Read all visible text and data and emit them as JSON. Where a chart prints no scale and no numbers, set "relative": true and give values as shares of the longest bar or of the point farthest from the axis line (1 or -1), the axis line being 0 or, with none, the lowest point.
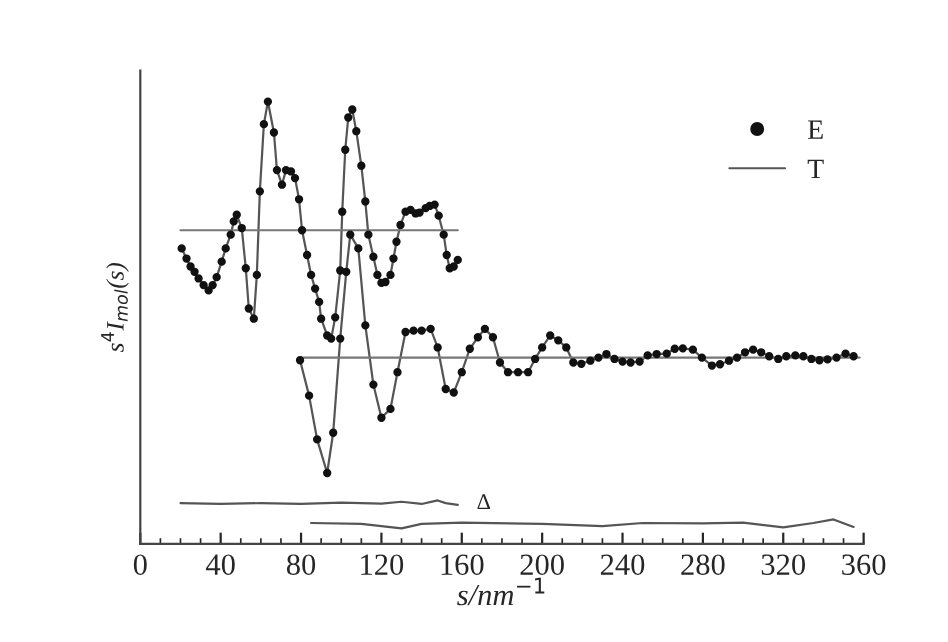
{
  "chart_data": {
    "type": "line",
    "relative": true,
    "xlabel": "s/nm$^{−1}$",
    "ylabel": "s$^{4}$I$_{mol}$(s)",
    "xlim": [
      0,
      360
    ],
    "xticks": [
      0,
      40,
      80,
      120,
      160,
      200,
      240,
      280,
      320,
      360
    ],
    "grid": false,
    "legend": "top right",
    "annotations": [
      "Δ"
    ],
    "series": [
      {
        "name": "E",
        "type": "scatter",
        "marker": "circle",
        "color": "#111111",
        "x": [
          20.6,
          23,
          25,
          27,
          29,
          31.5,
          34,
          36,
          38,
          40.5,
          42.5,
          45,
          46.5,
          48,
          50.5,
          52.5,
          54,
          56.5,
          58,
          59.5,
          61.5,
          63.5,
          66.5,
          68,
          70.5,
          72.5,
          75,
          77,
          79,
          80.5,
          83,
          85,
          87,
          89,
          90,
          93,
          95,
          97,
          99.5,
          100.5,
          102,
          103.5,
          105.5,
          107.5,
          110,
          112,
          113.5,
          116,
          118,
          120,
          122,
          124.5,
          126,
          127.5,
          129.5,
          132,
          134.5,
          137,
          139,
          142,
          144,
          146.5,
          148.5,
          151,
          152.5,
          154,
          156,
          158
        ],
        "values": [
          0.668,
          0.645,
          0.627,
          0.615,
          0.6,
          0.585,
          0.573,
          0.585,
          0.603,
          0.638,
          0.668,
          0.699,
          0.729,
          0.744,
          0.714,
          0.623,
          0.532,
          0.509,
          0.608,
          0.797,
          0.949,
          1,
          0.93,
          0.845,
          0.812,
          0.845,
          0.842,
          0.827,
          0.779,
          0.709,
          0.653,
          0.608,
          0.577,
          0.547,
          0.509,
          0.471,
          0.464,
          0.512,
          0.618,
          0.751,
          0.891,
          0.964,
          0.982,
          0.933,
          0.855,
          0.774,
          0.699,
          0.649,
          0.608,
          0.59,
          0.592,
          0.608,
          0.645,
          0.683,
          0.721,
          0.751,
          0.755,
          0.747,
          0.749,
          0.759,
          0.764,
          0.767,
          0.742,
          0.699,
          0.653,
          0.623,
          0.627,
          0.642
        ]
      },
      {
        "type": "scatter",
        "marker": "circle",
        "color": "#111111",
        "x": [
          79.5,
          84,
          88,
          93,
          96,
          99.5,
          102.5,
          104.5,
          108.5,
          112,
          116,
          120,
          124.5,
          128,
          132,
          136,
          140,
          144.5,
          148,
          152,
          156,
          160,
          164,
          168,
          171.5,
          175.5,
          179,
          183,
          188,
          193,
          196.5,
          200,
          204,
          208,
          212,
          215.5,
          219.5,
          224,
          228,
          232,
          236,
          240,
          244,
          248.5,
          252.5,
          257,
          262,
          266,
          270,
          275,
          279.5,
          284.5,
          288.5,
          293,
          297,
          301,
          305,
          309,
          313,
          317.5,
          321.5,
          326,
          330,
          334,
          338,
          342,
          346.5,
          351,
          355
        ],
        "values": [
          0.415,
          0.335,
          0.236,
          0.16,
          0.251,
          0.464,
          0.615,
          0.699,
          0.668,
          0.494,
          0.36,
          0.285,
          0.305,
          0.388,
          0.479,
          0.482,
          0.482,
          0.486,
          0.444,
          0.35,
          0.342,
          0.388,
          0.441,
          0.467,
          0.486,
          0.467,
          0.41,
          0.388,
          0.388,
          0.388,
          0.418,
          0.444,
          0.471,
          0.46,
          0.444,
          0.41,
          0.407,
          0.414,
          0.421,
          0.429,
          0.418,
          0.412,
          0.41,
          0.412,
          0.426,
          0.429,
          0.43,
          0.441,
          0.442,
          0.439,
          0.421,
          0.403,
          0.406,
          0.414,
          0.421,
          0.433,
          0.439,
          0.433,
          0.424,
          0.418,
          0.424,
          0.426,
          0.424,
          0.418,
          0.415,
          0.417,
          0.421,
          0.43,
          0.424
        ]
      },
      {
        "name": "T",
        "line_style": "solid",
        "color": "#555555",
        "x": [
          20.6,
          23,
          25,
          27,
          29,
          31.5,
          34,
          36,
          38,
          40.5,
          42.5,
          45,
          46.5,
          48,
          50.5,
          52.5,
          54,
          56.5,
          58,
          59.5,
          61.5,
          63.5,
          66.5,
          68,
          70.5,
          72.5,
          75,
          77,
          79,
          80.5,
          83,
          85,
          87,
          89,
          90,
          93,
          95,
          97,
          99.5,
          100.5,
          102,
          103.5,
          105.5,
          107.5,
          110,
          112,
          113.5,
          116,
          118,
          120,
          122,
          124.5,
          126,
          127.5,
          129.5,
          132,
          134.5,
          137,
          139,
          142,
          144,
          146.5,
          148.5,
          151,
          152.5,
          154,
          156,
          158
        ],
        "values": [
          0.668,
          0.645,
          0.627,
          0.615,
          0.6,
          0.585,
          0.573,
          0.585,
          0.603,
          0.638,
          0.668,
          0.699,
          0.729,
          0.744,
          0.714,
          0.623,
          0.532,
          0.509,
          0.608,
          0.797,
          0.949,
          1,
          0.93,
          0.845,
          0.812,
          0.845,
          0.842,
          0.827,
          0.779,
          0.709,
          0.653,
          0.608,
          0.577,
          0.547,
          0.509,
          0.471,
          0.464,
          0.512,
          0.618,
          0.751,
          0.891,
          0.964,
          0.982,
          0.933,
          0.855,
          0.774,
          0.699,
          0.649,
          0.608,
          0.59,
          0.592,
          0.608,
          0.645,
          0.683,
          0.721,
          0.751,
          0.755,
          0.747,
          0.749,
          0.759,
          0.764,
          0.767,
          0.742,
          0.699,
          0.653,
          0.623,
          0.627,
          0.642
        ]
      },
      {
        "type": "line",
        "line_style": "solid",
        "color": "#555555",
        "x": [
          79.5,
          84,
          88,
          93,
          96,
          99.5,
          102.5,
          104.5,
          108.5,
          112,
          116,
          120,
          124.5,
          128,
          132,
          136,
          140,
          144.5,
          148,
          152,
          156,
          160,
          164,
          168,
          171.5,
          175.5,
          179,
          183,
          188,
          193,
          196.5,
          200,
          204,
          208,
          212,
          215.5,
          219.5,
          224,
          228,
          232,
          236,
          240,
          244,
          248.5,
          252.5,
          257,
          262,
          266,
          270,
          275,
          279.5,
          284.5,
          288.5,
          293,
          297,
          301,
          305,
          309,
          313,
          317.5,
          321.5,
          326,
          330,
          334,
          338,
          342,
          346.5,
          351,
          355
        ],
        "values": [
          0.415,
          0.335,
          0.236,
          0.16,
          0.251,
          0.464,
          0.615,
          0.699,
          0.668,
          0.494,
          0.36,
          0.285,
          0.305,
          0.388,
          0.479,
          0.482,
          0.482,
          0.486,
          0.444,
          0.35,
          0.342,
          0.388,
          0.441,
          0.467,
          0.486,
          0.467,
          0.41,
          0.388,
          0.388,
          0.388,
          0.418,
          0.444,
          0.471,
          0.46,
          0.444,
          0.41,
          0.407,
          0.414,
          0.421,
          0.429,
          0.418,
          0.412,
          0.41,
          0.412,
          0.426,
          0.429,
          0.43,
          0.441,
          0.442,
          0.439,
          0.421,
          0.403,
          0.406,
          0.414,
          0.421,
          0.433,
          0.439,
          0.433,
          0.424,
          0.418,
          0.424,
          0.426,
          0.424,
          0.418,
          0.415,
          0.417,
          0.421,
          0.43,
          0.424
        ]
      },
      {
        "type": "line",
        "line_style": "solid",
        "color": "#777777",
        "x": [
          20,
          158
        ],
        "values": [
          0.709,
          0.709
        ]
      },
      {
        "type": "line",
        "line_style": "solid",
        "color": "#777777",
        "x": [
          80,
          358
        ],
        "values": [
          0.421,
          0.421
        ]
      },
      {
        "type": "line",
        "line_style": "solid",
        "color": "#555555",
        "x": [
          20,
          40,
          60,
          80,
          100,
          120,
          130,
          140,
          148,
          152,
          158
        ],
        "values": [
          0.092,
          0.09,
          0.092,
          0.09,
          0.093,
          0.091,
          0.095,
          0.09,
          0.098,
          0.092,
          0.088
        ]
      },
      {
        "type": "line",
        "line_style": "solid",
        "color": "#555555",
        "x": [
          85,
          110,
          130,
          140,
          160,
          200,
          230,
          250,
          280,
          300,
          320,
          335,
          345,
          355
        ],
        "values": [
          0.047,
          0.045,
          0.035,
          0.045,
          0.048,
          0.045,
          0.04,
          0.047,
          0.046,
          0.048,
          0.037,
          0.047,
          0.055,
          0.038
        ]
      }
    ]
  }
}
